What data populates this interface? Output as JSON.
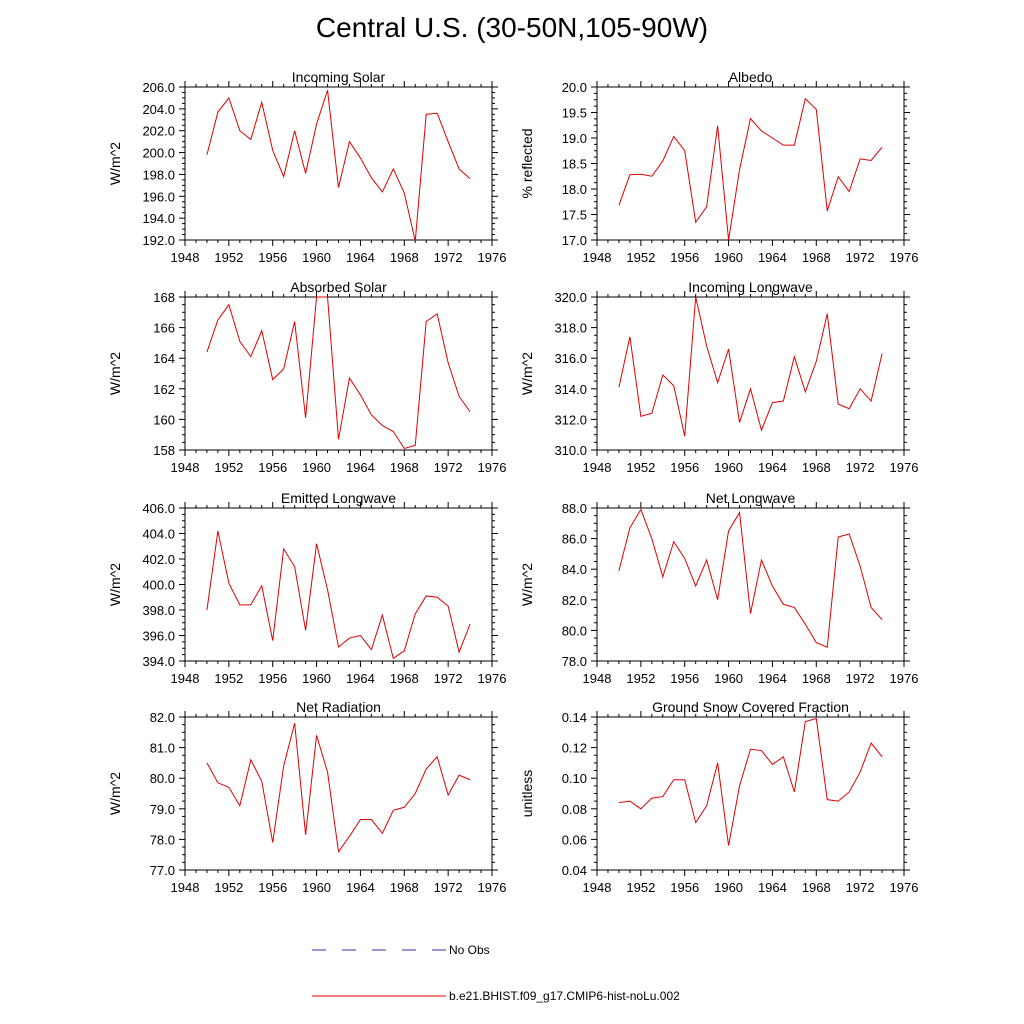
{
  "title": "Central U.S. (30-50N,105-90W)",
  "legend": [
    {
      "label": "No Obs",
      "color": "#3333aa",
      "style": "dashed"
    },
    {
      "label": "b.e21.BHIST.f09_g17.CMIP6-hist-noLu.002",
      "color": "#e00000",
      "style": "solid"
    }
  ],
  "chart_data": [
    {
      "type": "line",
      "title": "Incoming Solar",
      "ylabel": "W/m^2",
      "xlim": [
        1948,
        1976
      ],
      "ylim": [
        192.0,
        206.0
      ],
      "xticks": [
        1948,
        1952,
        1956,
        1960,
        1964,
        1968,
        1972,
        1976
      ],
      "yticks": [
        192.0,
        194.0,
        196.0,
        198.0,
        200.0,
        202.0,
        204.0,
        206.0
      ],
      "ytick_labels": [
        "192.0",
        "194.0",
        "196.0",
        "198.0",
        "200.0",
        "202.0",
        "204.0",
        "206.0"
      ],
      "series": [
        {
          "name": "b.e21.BHIST.f09_g17.CMIP6-hist-noLu.002",
          "color": "#e00000",
          "x": [
            1950,
            1951,
            1952,
            1953,
            1954,
            1955,
            1956,
            1957,
            1958,
            1959,
            1960,
            1961,
            1962,
            1963,
            1964,
            1965,
            1966,
            1967,
            1968,
            1969,
            1970,
            1971,
            1972,
            1973,
            1974
          ],
          "y": [
            199.8,
            203.7,
            205.0,
            202.0,
            201.2,
            204.6,
            200.2,
            197.8,
            202.0,
            198.1,
            202.6,
            205.7,
            196.8,
            201.0,
            199.5,
            197.7,
            196.4,
            198.5,
            196.3,
            191.9,
            203.5,
            203.6,
            201.0,
            198.5,
            197.6
          ]
        }
      ]
    },
    {
      "type": "line",
      "title": "Albedo",
      "ylabel": "% reflected",
      "xlim": [
        1948,
        1976
      ],
      "ylim": [
        17.0,
        20.0
      ],
      "xticks": [
        1948,
        1952,
        1956,
        1960,
        1964,
        1968,
        1972,
        1976
      ],
      "yticks": [
        17.0,
        17.5,
        18.0,
        18.5,
        19.0,
        19.5,
        20.0
      ],
      "ytick_labels": [
        "17.0",
        "17.5",
        "18.0",
        "18.5",
        "19.0",
        "19.5",
        "20.0"
      ],
      "series": [
        {
          "name": "b.e21.BHIST.f09_g17.CMIP6-hist-noLu.002",
          "color": "#e00000",
          "x": [
            1950,
            1951,
            1952,
            1953,
            1954,
            1955,
            1956,
            1957,
            1958,
            1959,
            1960,
            1961,
            1962,
            1963,
            1964,
            1965,
            1966,
            1967,
            1968,
            1969,
            1970,
            1971,
            1972,
            1973,
            1974
          ],
          "y": [
            17.68,
            18.28,
            18.29,
            18.25,
            18.55,
            19.03,
            18.75,
            17.35,
            17.65,
            19.24,
            17.0,
            18.38,
            19.38,
            19.14,
            19.0,
            18.86,
            18.86,
            19.77,
            19.56,
            17.57,
            18.24,
            17.95,
            18.59,
            18.56,
            18.82
          ]
        }
      ]
    },
    {
      "type": "line",
      "title": "Absorbed Solar",
      "ylabel": "W/m^2",
      "xlim": [
        1948,
        1976
      ],
      "ylim": [
        158,
        168
      ],
      "xticks": [
        1948,
        1952,
        1956,
        1960,
        1964,
        1968,
        1972,
        1976
      ],
      "yticks": [
        158,
        160,
        162,
        164,
        166,
        168
      ],
      "ytick_labels": [
        "158",
        "160",
        "162",
        "164",
        "166",
        "168"
      ],
      "series": [
        {
          "name": "b.e21.BHIST.f09_g17.CMIP6-hist-noLu.002",
          "color": "#e00000",
          "x": [
            1950,
            1951,
            1952,
            1953,
            1954,
            1955,
            1956,
            1957,
            1958,
            1959,
            1960,
            1961,
            1962,
            1963,
            1964,
            1965,
            1966,
            1967,
            1968,
            1969,
            1970,
            1971,
            1972,
            1973,
            1974
          ],
          "y": [
            164.4,
            166.5,
            167.5,
            165.1,
            164.1,
            165.8,
            162.6,
            163.3,
            166.4,
            160.1,
            168.0,
            168.0,
            158.7,
            162.7,
            161.6,
            160.3,
            159.6,
            159.2,
            158.1,
            158.3,
            166.4,
            166.9,
            163.7,
            161.5,
            160.5
          ]
        }
      ]
    },
    {
      "type": "line",
      "title": "Incoming Longwave",
      "ylabel": "W/m^2",
      "xlim": [
        1948,
        1976
      ],
      "ylim": [
        310.0,
        320.0
      ],
      "xticks": [
        1948,
        1952,
        1956,
        1960,
        1964,
        1968,
        1972,
        1976
      ],
      "yticks": [
        310.0,
        312.0,
        314.0,
        316.0,
        318.0,
        320.0
      ],
      "ytick_labels": [
        "310.0",
        "312.0",
        "314.0",
        "316.0",
        "318.0",
        "320.0"
      ],
      "series": [
        {
          "name": "b.e21.BHIST.f09_g17.CMIP6-hist-noLu.002",
          "color": "#e00000",
          "x": [
            1950,
            1951,
            1952,
            1953,
            1954,
            1955,
            1956,
            1957,
            1958,
            1959,
            1960,
            1961,
            1962,
            1963,
            1964,
            1965,
            1966,
            1967,
            1968,
            1969,
            1970,
            1971,
            1972,
            1973,
            1974
          ],
          "y": [
            314.1,
            317.4,
            312.2,
            312.4,
            314.9,
            314.2,
            310.9,
            320.0,
            316.8,
            314.4,
            316.6,
            311.8,
            314.0,
            311.3,
            313.1,
            313.2,
            316.1,
            313.8,
            315.8,
            318.9,
            313.0,
            312.7,
            314.0,
            313.2,
            316.3
          ]
        }
      ]
    },
    {
      "type": "line",
      "title": "Emitted Longwave",
      "ylabel": "W/m^2",
      "xlim": [
        1948,
        1976
      ],
      "ylim": [
        394.0,
        406.0
      ],
      "xticks": [
        1948,
        1952,
        1956,
        1960,
        1964,
        1968,
        1972,
        1976
      ],
      "yticks": [
        394.0,
        396.0,
        398.0,
        400.0,
        402.0,
        404.0,
        406.0
      ],
      "ytick_labels": [
        "394.0",
        "396.0",
        "398.0",
        "400.0",
        "402.0",
        "404.0",
        "406.0"
      ],
      "series": [
        {
          "name": "b.e21.BHIST.f09_g17.CMIP6-hist-noLu.002",
          "color": "#e00000",
          "x": [
            1950,
            1951,
            1952,
            1953,
            1954,
            1955,
            1956,
            1957,
            1958,
            1959,
            1960,
            1961,
            1962,
            1963,
            1964,
            1965,
            1966,
            1967,
            1968,
            1969,
            1970,
            1971,
            1972,
            1973,
            1974
          ],
          "y": [
            398.0,
            404.2,
            400.1,
            398.4,
            398.4,
            399.9,
            395.6,
            402.8,
            401.4,
            396.4,
            403.2,
            399.6,
            395.1,
            395.8,
            396.0,
            394.9,
            397.6,
            394.2,
            394.8,
            397.7,
            399.1,
            399.0,
            398.3,
            394.7,
            396.9
          ]
        }
      ]
    },
    {
      "type": "line",
      "title": "Net Longwave",
      "ylabel": "W/m^2",
      "xlim": [
        1948,
        1976
      ],
      "ylim": [
        78.0,
        88.0
      ],
      "xticks": [
        1948,
        1952,
        1956,
        1960,
        1964,
        1968,
        1972,
        1976
      ],
      "yticks": [
        78.0,
        80.0,
        82.0,
        84.0,
        86.0,
        88.0
      ],
      "ytick_labels": [
        "78.0",
        "80.0",
        "82.0",
        "84.0",
        "86.0",
        "88.0"
      ],
      "series": [
        {
          "name": "b.e21.BHIST.f09_g17.CMIP6-hist-noLu.002",
          "color": "#e00000",
          "x": [
            1950,
            1951,
            1952,
            1953,
            1954,
            1955,
            1956,
            1957,
            1958,
            1959,
            1960,
            1961,
            1962,
            1963,
            1964,
            1965,
            1966,
            1967,
            1968,
            1969,
            1970,
            1971,
            1972,
            1973,
            1974
          ],
          "y": [
            83.9,
            86.7,
            87.9,
            86.0,
            83.5,
            85.8,
            84.7,
            82.9,
            84.6,
            82.0,
            86.5,
            87.7,
            81.1,
            84.6,
            82.9,
            81.7,
            81.5,
            80.4,
            79.2,
            78.9,
            86.1,
            86.3,
            84.2,
            81.5,
            80.7
          ]
        }
      ]
    },
    {
      "type": "line",
      "title": "Net Radiation",
      "ylabel": "W/m^2",
      "xlim": [
        1948,
        1976
      ],
      "ylim": [
        77.0,
        82.0
      ],
      "xticks": [
        1948,
        1952,
        1956,
        1960,
        1964,
        1968,
        1972,
        1976
      ],
      "yticks": [
        77.0,
        78.0,
        79.0,
        80.0,
        81.0,
        82.0
      ],
      "ytick_labels": [
        "77.0",
        "78.0",
        "79.0",
        "80.0",
        "81.0",
        "82.0"
      ],
      "series": [
        {
          "name": "b.e21.BHIST.f09_g17.CMIP6-hist-noLu.002",
          "color": "#e00000",
          "x": [
            1950,
            1951,
            1952,
            1953,
            1954,
            1955,
            1956,
            1957,
            1958,
            1959,
            1960,
            1961,
            1962,
            1963,
            1964,
            1965,
            1966,
            1967,
            1968,
            1969,
            1970,
            1971,
            1972,
            1973,
            1974
          ],
          "y": [
            80.5,
            79.85,
            79.7,
            79.1,
            80.6,
            79.9,
            77.9,
            80.4,
            81.8,
            78.15,
            81.4,
            80.2,
            77.6,
            78.1,
            78.65,
            78.65,
            78.2,
            78.95,
            79.05,
            79.5,
            80.3,
            80.7,
            79.45,
            80.1,
            79.95
          ]
        }
      ]
    },
    {
      "type": "line",
      "title": "Ground Snow Covered Fraction",
      "ylabel": "unitless",
      "xlim": [
        1948,
        1976
      ],
      "ylim": [
        0.04,
        0.14
      ],
      "xticks": [
        1948,
        1952,
        1956,
        1960,
        1964,
        1968,
        1972,
        1976
      ],
      "yticks": [
        0.04,
        0.06,
        0.08,
        0.1,
        0.12,
        0.14
      ],
      "ytick_labels": [
        "0.04",
        "0.06",
        "0.08",
        "0.10",
        "0.12",
        "0.14"
      ],
      "series": [
        {
          "name": "b.e21.BHIST.f09_g17.CMIP6-hist-noLu.002",
          "color": "#e00000",
          "x": [
            1950,
            1951,
            1952,
            1953,
            1954,
            1955,
            1956,
            1957,
            1958,
            1959,
            1960,
            1961,
            1962,
            1963,
            1964,
            1965,
            1966,
            1967,
            1968,
            1969,
            1970,
            1971,
            1972,
            1973,
            1974
          ],
          "y": [
            0.084,
            0.085,
            0.08,
            0.087,
            0.088,
            0.099,
            0.099,
            0.071,
            0.082,
            0.11,
            0.056,
            0.095,
            0.119,
            0.118,
            0.109,
            0.114,
            0.091,
            0.137,
            0.139,
            0.086,
            0.085,
            0.091,
            0.104,
            0.123,
            0.114
          ]
        }
      ]
    }
  ]
}
